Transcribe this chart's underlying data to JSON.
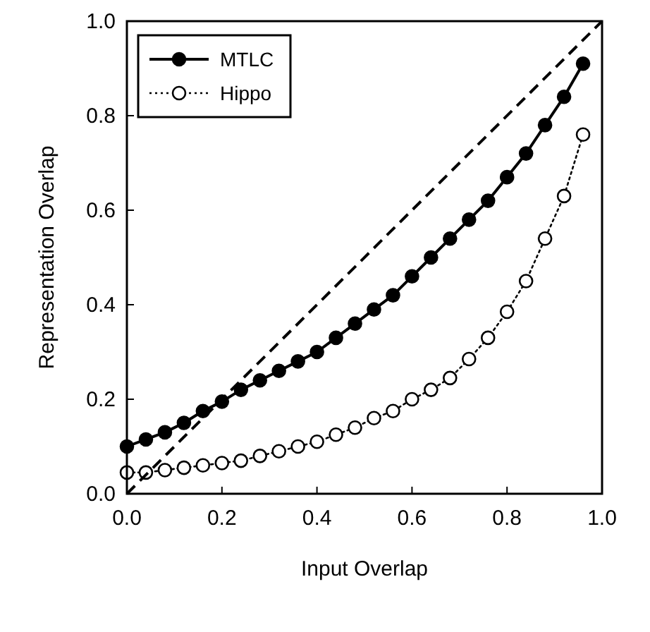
{
  "chart_data": {
    "type": "line",
    "xlabel": "Input Overlap",
    "ylabel": "Representation Overlap",
    "xlim": [
      0,
      1
    ],
    "ylim": [
      0,
      1
    ],
    "xticks": [
      "0.0",
      0.2,
      0.4,
      0.6,
      0.8,
      "1.0"
    ],
    "yticks": [
      "0.0",
      0.2,
      0.4,
      0.6,
      0.8,
      "1.0"
    ],
    "x": [
      0,
      0.04,
      0.08,
      0.12,
      0.16,
      0.2,
      0.24,
      0.28,
      0.32,
      0.36,
      0.4,
      0.44,
      0.48,
      0.52,
      0.56,
      0.6,
      0.64,
      0.68,
      0.72,
      0.76,
      0.8,
      0.84,
      0.88,
      0.92,
      0.96
    ],
    "legend": "top left",
    "grid": false,
    "series": [
      {
        "name": "MTLC",
        "color": "#000000",
        "marker": "circle",
        "line_style": "solid",
        "values": [
          0.1,
          0.115,
          0.13,
          0.15,
          0.175,
          0.195,
          0.22,
          0.24,
          0.26,
          0.28,
          0.3,
          0.33,
          0.36,
          0.39,
          0.42,
          0.46,
          0.5,
          0.54,
          0.58,
          0.62,
          0.67,
          0.72,
          0.78,
          0.84,
          0.91
        ]
      },
      {
        "name": "Hippo",
        "color": "#000000",
        "marker": "open-circle",
        "line_style": "dotted",
        "values": [
          0.045,
          0.045,
          0.05,
          0.055,
          0.06,
          0.065,
          0.07,
          0.08,
          0.09,
          0.1,
          0.11,
          0.125,
          0.14,
          0.16,
          0.175,
          0.2,
          0.22,
          0.245,
          0.285,
          0.33,
          0.385,
          0.45,
          0.54,
          0.63,
          0.76
        ]
      },
      {
        "color": "#000000",
        "marker": "none",
        "line_style": "dashed",
        "x": [
          0,
          1
        ],
        "values": [
          0,
          1
        ]
      }
    ]
  }
}
